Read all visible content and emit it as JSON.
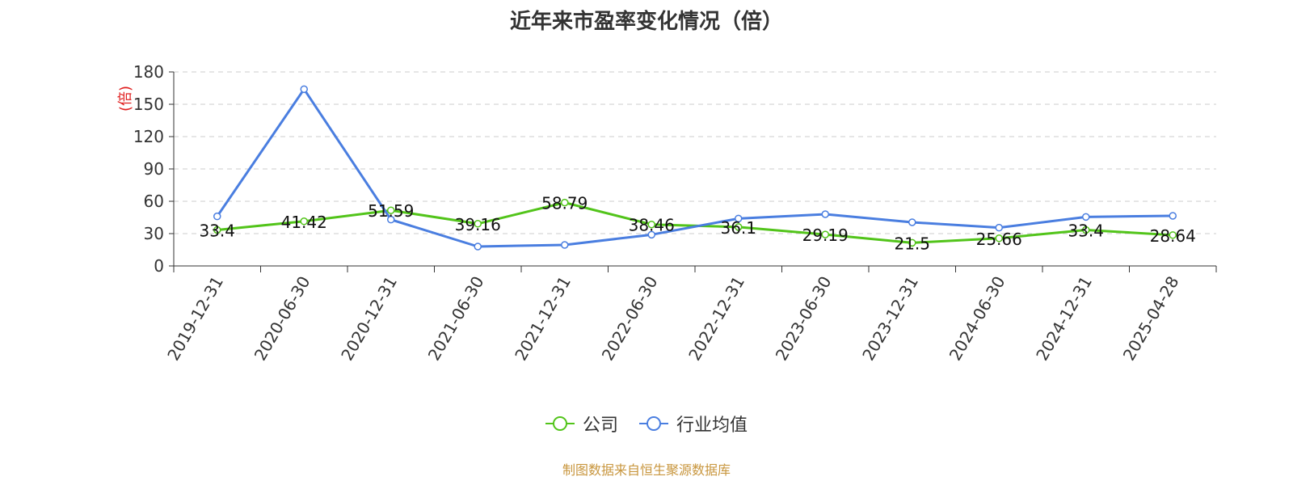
{
  "chart_data": {
    "type": "line",
    "title": "近年来市盈率变化情况（倍）",
    "ylabel": "(倍)",
    "ylim": [
      0,
      180
    ],
    "yticks": [
      0,
      30,
      60,
      90,
      120,
      150,
      180
    ],
    "grid": true,
    "legend_position": "bottom-center",
    "categories": [
      "2019-12-31",
      "2020-06-30",
      "2020-12-31",
      "2021-06-30",
      "2021-12-31",
      "2022-06-30",
      "2022-12-31",
      "2023-06-30",
      "2023-12-31",
      "2024-06-30",
      "2024-12-31",
      "2025-04-28"
    ],
    "series": [
      {
        "name": "公司",
        "color": "#52c41a",
        "values": [
          33.4,
          41.42,
          51.59,
          39.16,
          58.79,
          38.46,
          36.1,
          29.19,
          21.5,
          25.66,
          33.4,
          28.64
        ],
        "labels": [
          "33.4",
          "41.42",
          "51.59",
          "39.16",
          "58.79",
          "38.46",
          "36.1",
          "29.19",
          "21.5",
          "25.66",
          "33.4",
          "28.64"
        ]
      },
      {
        "name": "行业均值",
        "color": "#4a7ee0",
        "values": [
          46,
          164,
          43,
          18,
          19.5,
          29,
          44,
          48,
          40.5,
          35.5,
          45.5,
          46.5
        ]
      }
    ]
  },
  "footer": {
    "source": "制图数据来自恒生聚源数据库"
  }
}
